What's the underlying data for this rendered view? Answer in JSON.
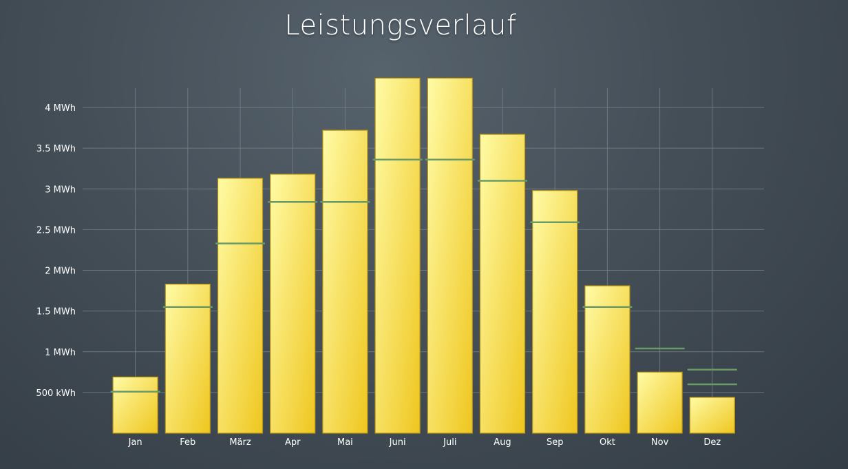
{
  "chart_data": {
    "type": "bar",
    "title": "Leistungsverlauf",
    "xlabel": "",
    "ylabel": "",
    "categories": [
      "Jan",
      "Feb",
      "März",
      "Apr",
      "Mai",
      "Juni",
      "Juli",
      "Aug",
      "Sep",
      "Okt",
      "Nov",
      "Dez"
    ],
    "series": [
      {
        "type": "bar",
        "values": [
          690,
          1830,
          3130,
          3180,
          3720,
          4360,
          4360,
          3670,
          2980,
          1810,
          750,
          440
        ]
      },
      {
        "type": "reference-line",
        "values": [
          510,
          1550,
          2330,
          2840,
          2840,
          3360,
          3360,
          3100,
          2590,
          1550,
          1040,
          [
            780,
            600
          ]
        ]
      }
    ],
    "y_ticks": [
      {
        "value": 500,
        "label": "500 kWh"
      },
      {
        "value": 1000,
        "label": "1 MWh"
      },
      {
        "value": 1500,
        "label": "1.5 MWh"
      },
      {
        "value": 2000,
        "label": "2 MWh"
      },
      {
        "value": 2500,
        "label": "2.5 MWh"
      },
      {
        "value": 3000,
        "label": "3 MWh"
      },
      {
        "value": 3500,
        "label": "3.5 MWh"
      },
      {
        "value": 4000,
        "label": "4 MWh"
      }
    ],
    "ylim": [
      0,
      4250
    ],
    "grid": true,
    "legend": "none",
    "colors": {
      "bar_light": "#fffba6",
      "bar_dark": "#efc61f",
      "bar_border": "#b89414",
      "reference_line": "#6a9a68",
      "grid": "#7a848d"
    }
  }
}
